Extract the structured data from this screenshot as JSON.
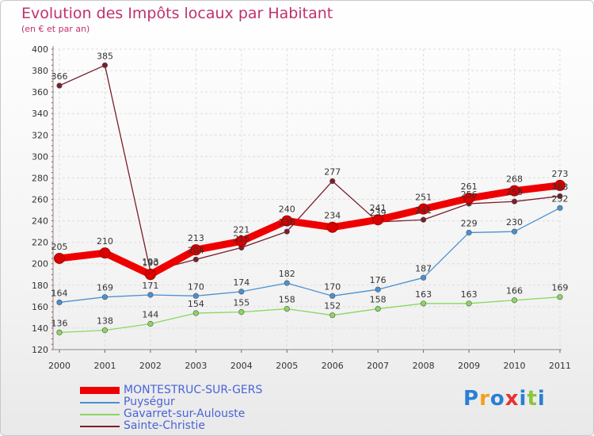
{
  "chart_data": {
    "type": "line",
    "title": "Evolution des Impôts locaux par Habitant",
    "subtitle": "(en € et par an)",
    "xlabel": "",
    "ylabel": "",
    "ylim": [
      120,
      400
    ],
    "yticks": [
      120,
      140,
      160,
      180,
      200,
      220,
      240,
      260,
      280,
      300,
      320,
      340,
      360,
      380,
      400
    ],
    "categories": [
      "2000",
      "2001",
      "2002",
      "2003",
      "2004",
      "2005",
      "2006",
      "2007",
      "2008",
      "2009",
      "2010",
      "2011"
    ],
    "grid": true,
    "legend_position": "bottom-left",
    "series": [
      {
        "name": "MONTESTRUC-SUR-GERS",
        "color": "#ee0000",
        "emphasis": "thick",
        "values": [
          205,
          210,
          190,
          213,
          221,
          240,
          234,
          241,
          251,
          261,
          268,
          273
        ]
      },
      {
        "name": "Puységur",
        "color": "#4a90d0",
        "emphasis": "thin",
        "values": [
          164,
          169,
          171,
          170,
          174,
          182,
          170,
          176,
          187,
          229,
          230,
          252
        ]
      },
      {
        "name": "Gavarret-sur-Aulouste",
        "color": "#88d860",
        "emphasis": "thin",
        "values": [
          136,
          138,
          144,
          154,
          155,
          158,
          152,
          158,
          163,
          163,
          166,
          169
        ]
      },
      {
        "name": "Sainte-Christie",
        "color": "#7a1f2a",
        "emphasis": "thin",
        "values": [
          366,
          385,
          193,
          204,
          215,
          230,
          277,
          239,
          241,
          256,
          258,
          263
        ]
      }
    ]
  },
  "logo": {
    "letters": [
      "P",
      "r",
      "o",
      "x",
      "i",
      "t",
      "i"
    ],
    "colors": [
      "#2a7fd4",
      "#f0a020",
      "#2a7fd4",
      "#e83030",
      "#2a7fd4",
      "#8ac63a",
      "#2a7fd4"
    ]
  }
}
